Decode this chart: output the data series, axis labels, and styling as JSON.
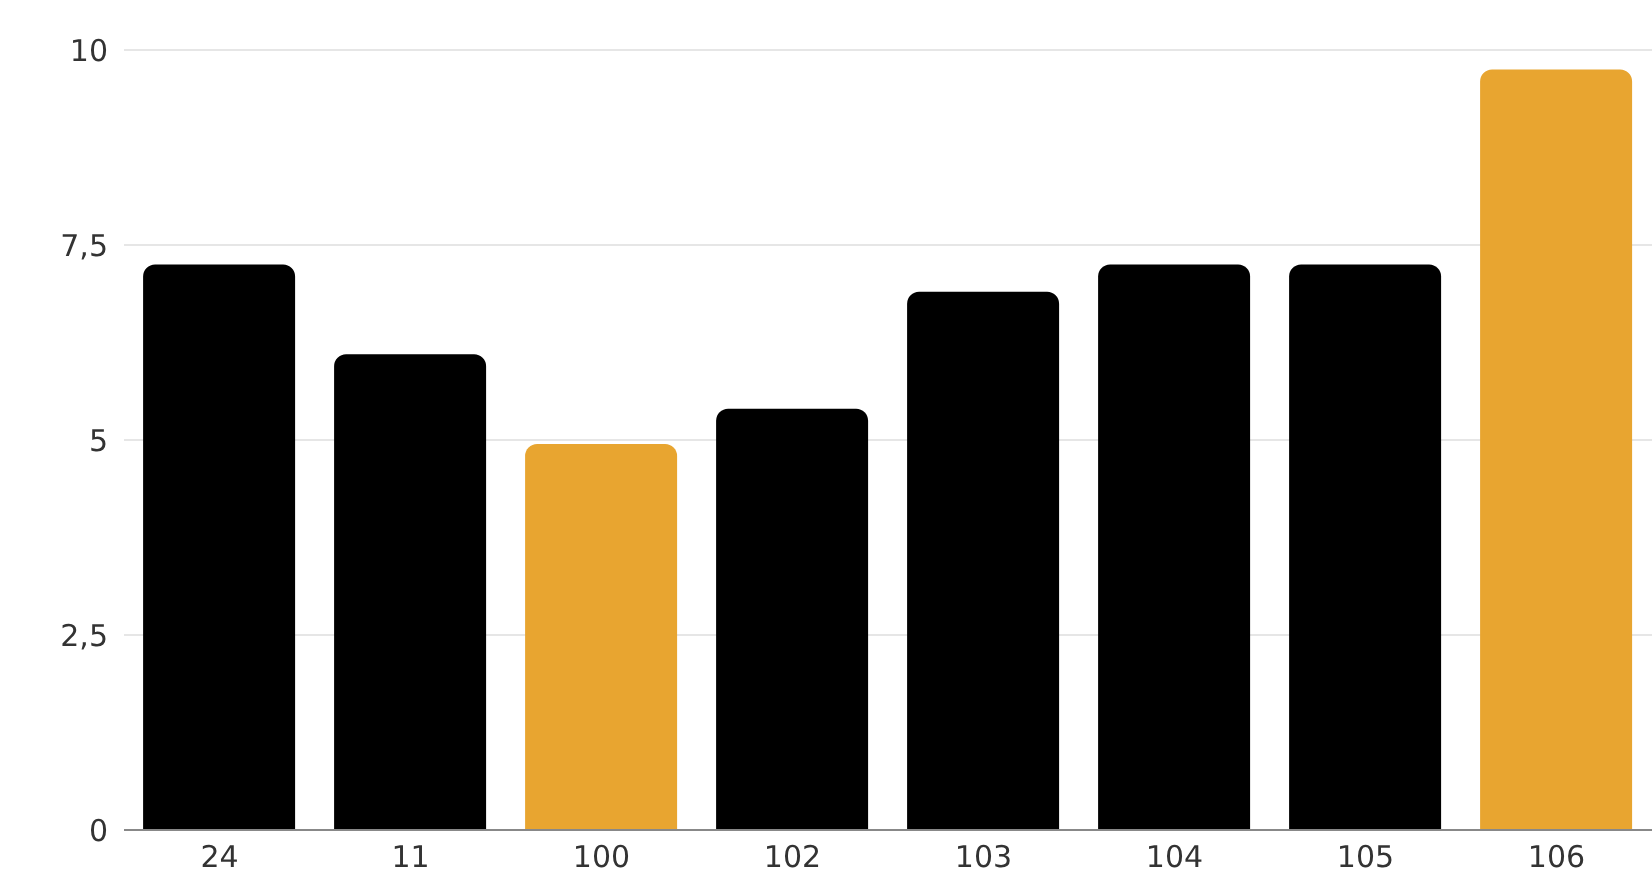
{
  "chart_data": {
    "type": "bar",
    "categories": [
      "24",
      "11",
      "100",
      "102",
      "103",
      "104",
      "105",
      "106"
    ],
    "values": [
      7.25,
      6.1,
      4.95,
      5.4,
      6.9,
      7.25,
      7.25,
      9.75
    ],
    "colors": [
      "#000000",
      "#000000",
      "#e8a530",
      "#000000",
      "#000000",
      "#000000",
      "#000000",
      "#e8a530"
    ],
    "ylim": [
      0,
      10
    ],
    "yticks": [
      0,
      {
        "value": 2.5,
        "label": "2,5"
      },
      5,
      {
        "value": 7.5,
        "label": "7,5"
      },
      10
    ],
    "grid": "y"
  }
}
